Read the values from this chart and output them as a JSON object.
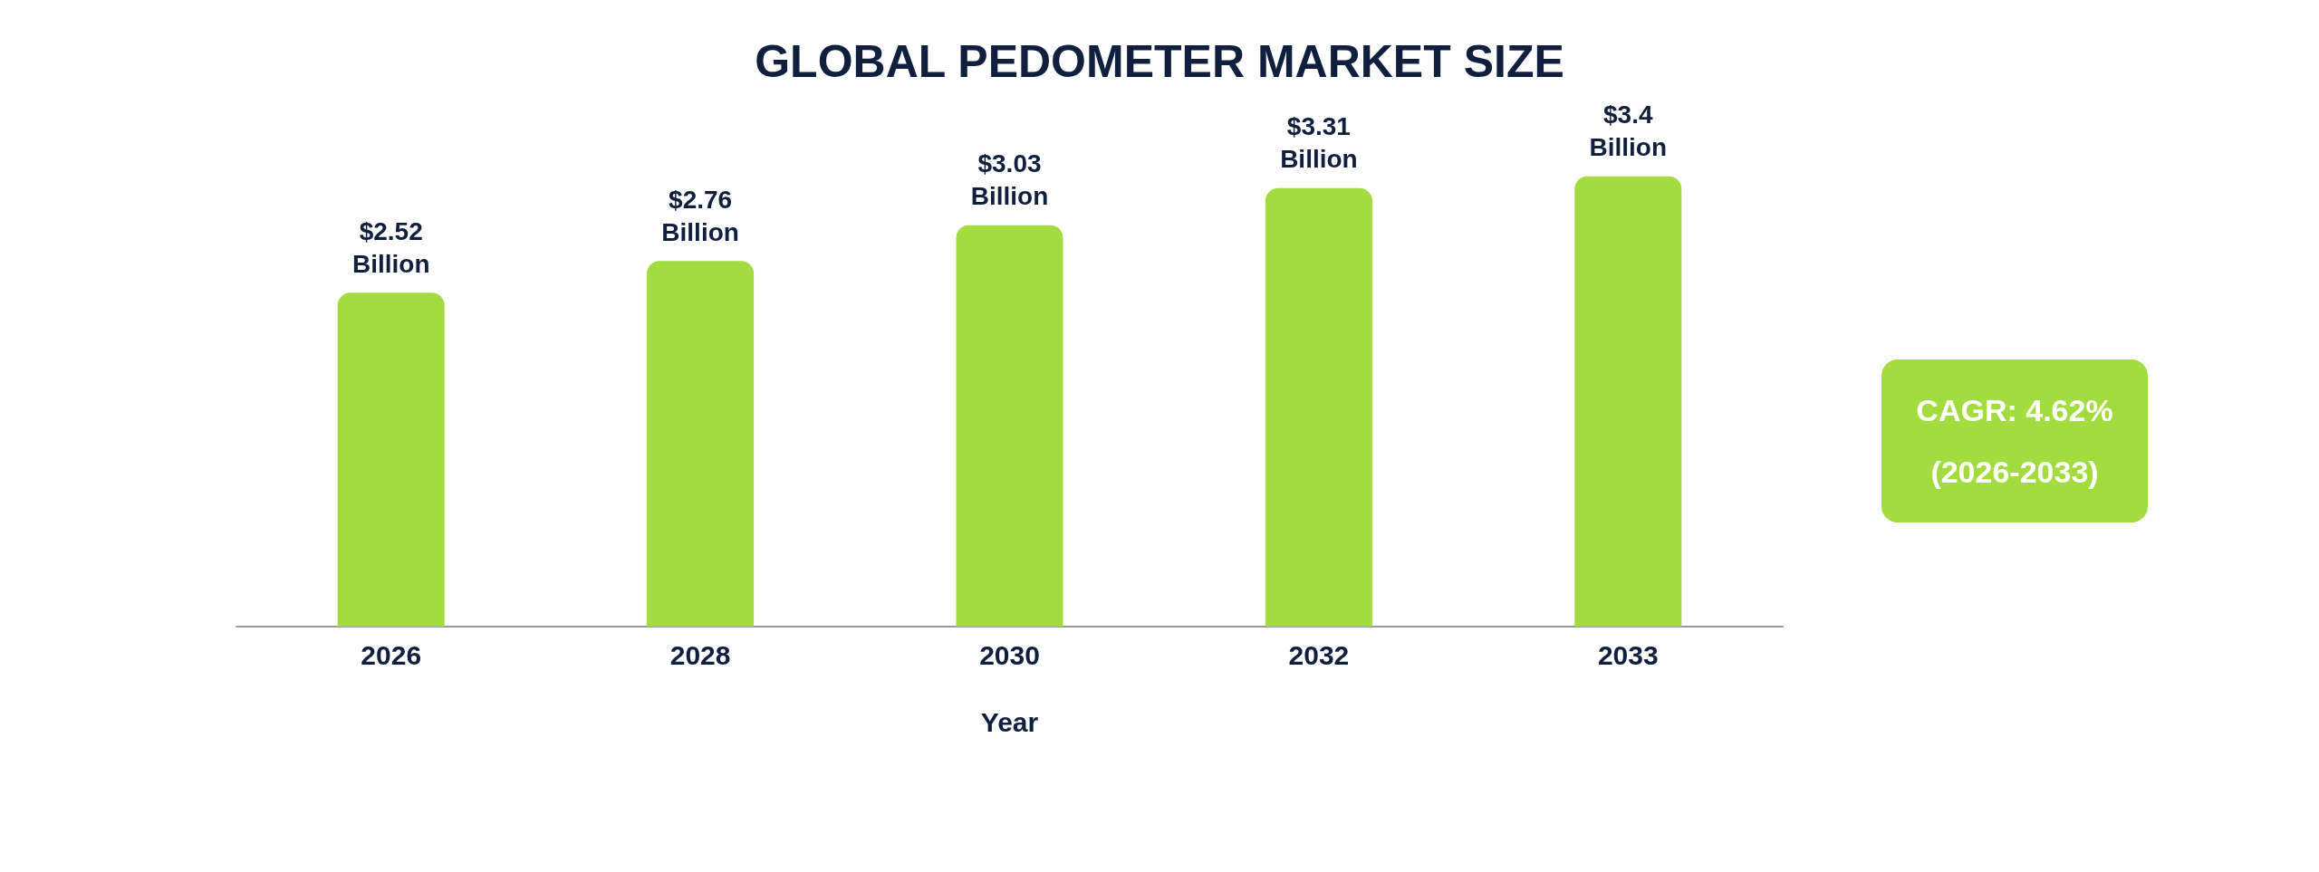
{
  "chart_data": {
    "type": "bar",
    "title": "GLOBAL PEDOMETER MARKET SIZE",
    "xlabel": "Year",
    "categories": [
      "2026",
      "2028",
      "2030",
      "2032",
      "2033"
    ],
    "values": [
      2.52,
      2.76,
      3.03,
      3.31,
      3.4
    ],
    "value_labels": [
      "$2.52 Billion",
      "$2.76 Billion",
      "$3.03 Billion",
      "$3.31 Billion",
      "$3.4 Billion"
    ],
    "color": "#a3dc3e",
    "annotations": [
      "CAGR: 4.62%",
      "(2026-2033)"
    ],
    "grid": false
  }
}
